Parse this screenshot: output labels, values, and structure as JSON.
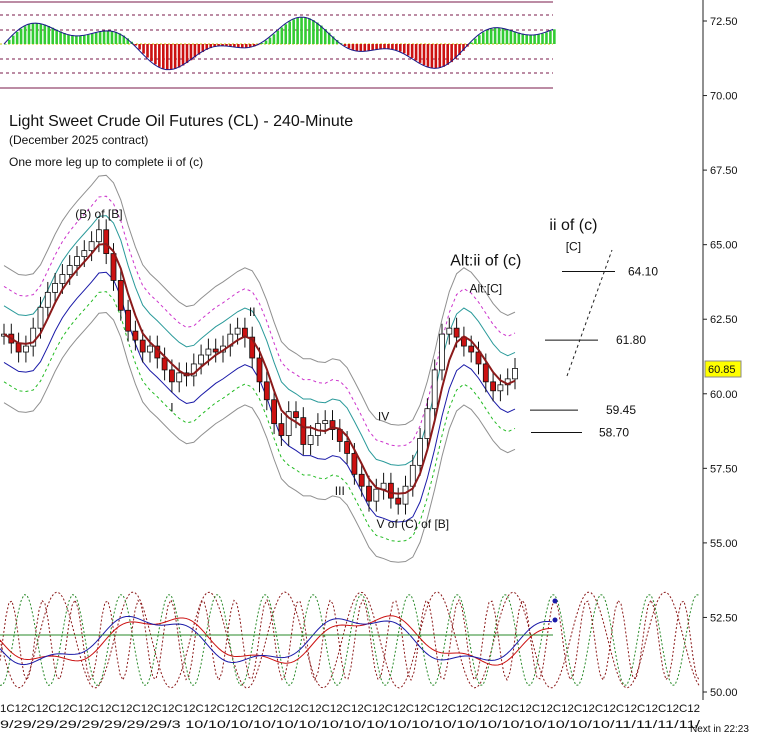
{
  "title": "Light Sweet Crude Oil Futures (CL) - 240-Minute",
  "subtitle": "(December 2025 contract)",
  "note": "One more leg up to complete ii of (c)",
  "footer": "Next in 22:23",
  "colors": {
    "up_candle": "#ffffff",
    "down_candle": "#cc1111",
    "ma_red": "#8b1a1a",
    "band_blue": "#1a1aa8",
    "band_teal": "#2a9a9a",
    "band_magenta": "#cc33cc",
    "band_green": "#22bb22",
    "band_gray": "#909090",
    "price_tag": "#ffff00",
    "histogram_up": "#33cc33",
    "histogram_down": "#cc1111"
  },
  "chart_data": {
    "type": "candlestick",
    "y_axis": {
      "ticks": [
        "72.50",
        "70.00",
        "67.50",
        "65.00",
        "62.50",
        "60.00",
        "57.50",
        "55.00",
        "52.50",
        "50.00"
      ],
      "min": 50.0,
      "max": 73.5,
      "side": "right"
    },
    "x_axis": {
      "tick_text": "1C12C12C12C12C12C12C12C12C12C12C12C12C12C12C12C12C12C12C12C12C12C12C12C12C12C12C12C12C12C12C12C12C12",
      "date_text": "9/29/29/29/29/29/29/29/3 10/10/10/10/10/10/10/10/10/10/10/10/10/10/10/10/10/10/10/11/11/11/11/"
    },
    "last_price": "60.85",
    "prices": [
      62.0,
      61.7,
      61.4,
      61.6,
      62.2,
      62.9,
      63.4,
      63.7,
      64.0,
      64.3,
      64.6,
      64.8,
      65.1,
      65.5,
      64.7,
      63.8,
      62.8,
      62.1,
      61.8,
      61.4,
      61.6,
      61.2,
      60.8,
      60.4,
      60.7,
      60.6,
      61.0,
      61.3,
      61.5,
      61.4,
      61.6,
      62.0,
      62.2,
      61.9,
      61.2,
      60.4,
      59.8,
      59.0,
      58.6,
      59.4,
      59.2,
      58.3,
      58.6,
      59.0,
      59.1,
      58.8,
      58.4,
      58.0,
      57.3,
      56.9,
      56.4,
      56.8,
      57.0,
      56.5,
      56.3,
      56.9,
      57.6,
      58.5,
      59.5,
      60.8,
      62.0,
      62.2,
      61.9,
      61.6,
      61.4,
      61.0,
      60.4,
      60.1,
      60.3,
      60.5,
      60.85
    ],
    "annotations": [
      {
        "text": "(B) of [B]",
        "price": 65.9,
        "index": 13
      },
      {
        "text": "I",
        "price": 59.4,
        "index": 23
      },
      {
        "text": "II",
        "price": 62.6,
        "index": 34
      },
      {
        "text": "III",
        "price": 56.6,
        "index": 46
      },
      {
        "text": "IV",
        "price": 59.1,
        "index": 52
      },
      {
        "text": "V of (C) of [B]",
        "price": 55.5,
        "index": 56
      },
      {
        "text": "Alt:[C]",
        "price": 63.4,
        "index": 66
      },
      {
        "text": "Alt:ii of (c)",
        "price": 64.3,
        "index": 66
      },
      {
        "text": "ii of (c)",
        "price": 65.5,
        "index": 78
      },
      {
        "text": "[C]",
        "price": 64.8,
        "index": 78
      }
    ],
    "levels": [
      {
        "label": "64.10",
        "price": 64.1
      },
      {
        "label": "61.80",
        "price": 61.8
      },
      {
        "label": "59.45",
        "price": 59.45
      },
      {
        "label": "58.70",
        "price": 58.7
      }
    ]
  }
}
